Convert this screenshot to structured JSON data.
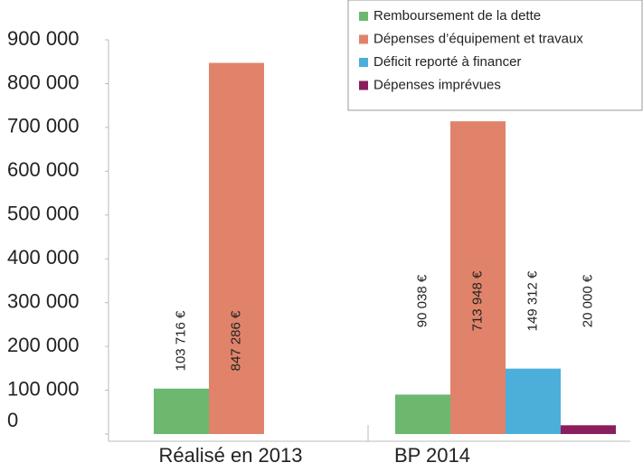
{
  "chart_data": {
    "type": "bar",
    "categories": [
      "Réalisé en 2013",
      "BP 2014"
    ],
    "series": [
      {
        "name": "Remboursement de la dette",
        "color": "#6cb86f",
        "values": [
          103716,
          90038
        ],
        "value_labels": [
          "103 716 €",
          "90 038 €"
        ]
      },
      {
        "name": "Dépenses d’équipement et travaux",
        "color": "#e0836a",
        "values": [
          847286,
          713948
        ],
        "value_labels": [
          "847 286 €",
          "713 948 €"
        ]
      },
      {
        "name": "Déficit reporté à financer",
        "color": "#4bafd9",
        "values": [
          null,
          149312
        ],
        "value_labels": [
          null,
          "149 312 €"
        ]
      },
      {
        "name": "Dépenses imprévues",
        "color": "#8b1e5e",
        "values": [
          null,
          20000
        ],
        "value_labels": [
          null,
          "20 000 €"
        ]
      }
    ],
    "ylim": [
      0,
      900000
    ],
    "yticks": [
      0,
      {
        "value": 100000,
        "label": "100 000"
      },
      {
        "value": 200000,
        "label": "200 000"
      },
      {
        "value": 300000,
        "label": "300 000"
      },
      {
        "value": 400000,
        "label": "400 000"
      },
      {
        "value": 500000,
        "label": "500 000"
      },
      {
        "value": 600000,
        "label": "600 000"
      },
      {
        "value": 700000,
        "label": "700 000"
      },
      {
        "value": 800000,
        "label": "800 000"
      },
      {
        "value": 900000,
        "label": "900 000"
      }
    ],
    "legend": "top-right",
    "grid": false
  }
}
